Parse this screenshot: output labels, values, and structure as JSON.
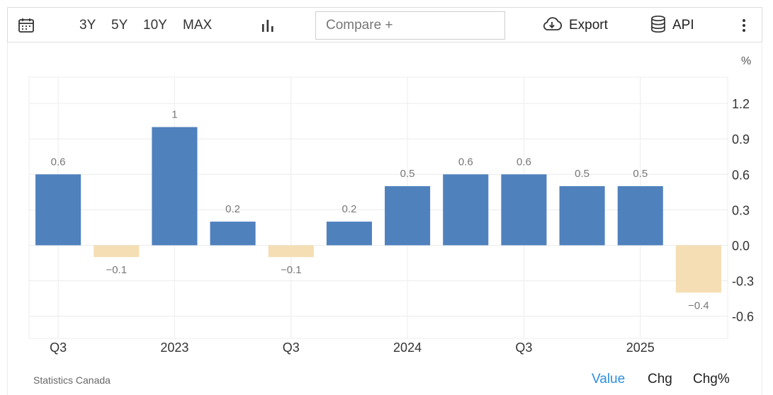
{
  "toolbar": {
    "calendar_icon": "calendar-icon",
    "ranges": [
      "3Y",
      "5Y",
      "10Y",
      "MAX"
    ],
    "chart_type_icon": "bar-chart-icon",
    "compare_placeholder": "Compare +",
    "export_label": "Export",
    "export_icon": "cloud-download-icon",
    "api_label": "API",
    "api_icon": "database-icon",
    "more_icon": "more-vertical-icon"
  },
  "source": "Statistics Canada",
  "modes": [
    "Value",
    "Chg",
    "Chg%"
  ],
  "active_mode": "Value",
  "chart_data": {
    "type": "bar",
    "title": "",
    "xlabel": "",
    "ylabel": "%",
    "categories": [
      "2022 Q3",
      "2022 Q4",
      "2023 Q1",
      "2023 Q2",
      "2023 Q3",
      "2023 Q4",
      "2024 Q1",
      "2024 Q2",
      "2024 Q3",
      "2024 Q4",
      "2025 Q1",
      "2025 Q2"
    ],
    "values": [
      0.6,
      -0.1,
      1,
      0.2,
      -0.1,
      0.2,
      0.5,
      0.6,
      0.6,
      0.5,
      0.5,
      -0.4
    ],
    "value_labels": [
      "0.6",
      "−0.1",
      "1",
      "0.2",
      "−0.1",
      "0.2",
      "0.5",
      "0.6",
      "0.6",
      "0.5",
      "0.5",
      "−0.4"
    ],
    "x_tick_labels": [
      "Q3",
      "2023",
      "Q3",
      "2024",
      "Q3",
      "2025"
    ],
    "x_tick_categories": [
      "2022 Q3",
      "2023 Q1",
      "2023 Q3",
      "2024 Q1",
      "2024 Q3",
      "2025 Q1"
    ],
    "y_ticks": [
      1.2,
      0.9,
      0.6,
      0.3,
      0.0,
      -0.3,
      -0.6
    ],
    "y_tick_labels": [
      "1.2",
      "0.9",
      "0.6",
      "0.3",
      "0.0",
      "-0.3",
      "-0.6"
    ],
    "ylim": [
      -0.8,
      1.45
    ],
    "grid": true,
    "y_axis_side": "right",
    "colors": {
      "positive": "#4f81bd",
      "negative": "#f5deb3",
      "grid": "#ececec",
      "label": "#777777"
    }
  }
}
